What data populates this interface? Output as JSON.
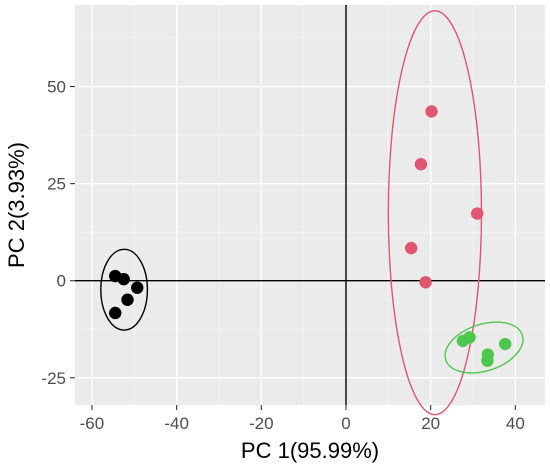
{
  "chart_data": {
    "type": "scatter",
    "title": "",
    "xlabel": "PC 1(95.99%)",
    "ylabel": "PC 2(3.93%)",
    "xlim": [
      -64,
      47
    ],
    "ylim": [
      -32,
      71
    ],
    "x_ticks": [
      -60,
      -40,
      -20,
      0,
      20,
      40
    ],
    "x_tick_labels": [
      "-60",
      "-40",
      "-20",
      "0",
      "20",
      "40"
    ],
    "y_ticks": [
      -25,
      0,
      25,
      50
    ],
    "y_tick_labels": [
      "-25",
      "0",
      "25",
      "50"
    ],
    "grid": true,
    "legend": "none",
    "reference_lines": {
      "x": 0,
      "y": 0
    },
    "series": [
      {
        "color": "#000000",
        "points": [
          {
            "x": -54.5,
            "y": 1.2
          },
          {
            "x": -52.5,
            "y": 0.4
          },
          {
            "x": -49.3,
            "y": -1.8
          },
          {
            "x": -51.6,
            "y": -4.9
          },
          {
            "x": -54.5,
            "y": -8.3
          }
        ],
        "ellipse": {
          "cx": -52.4,
          "cy": -2.3,
          "rx": 5.5,
          "ry": 10.4,
          "rotate": 0
        }
      },
      {
        "color": "#e05570",
        "points": [
          {
            "x": 20.2,
            "y": 43.6
          },
          {
            "x": 17.7,
            "y": 30.0
          },
          {
            "x": 31.0,
            "y": 17.3
          },
          {
            "x": 15.4,
            "y": 8.4
          },
          {
            "x": 18.8,
            "y": -0.4
          }
        ],
        "ellipse": {
          "cx": 21.0,
          "cy": 17.5,
          "rx": 11.0,
          "ry": 52.0,
          "rotate": 0
        }
      },
      {
        "color": "#4dc84d",
        "points": [
          {
            "x": 27.6,
            "y": -15.5
          },
          {
            "x": 29.2,
            "y": -14.6
          },
          {
            "x": 33.5,
            "y": -19.0
          },
          {
            "x": 37.6,
            "y": -16.3
          },
          {
            "x": 33.4,
            "y": -20.6
          }
        ],
        "ellipse": {
          "cx": 32.6,
          "cy": -17.2,
          "rx": 9.5,
          "ry": 6.0,
          "rotate": 18
        }
      }
    ]
  }
}
